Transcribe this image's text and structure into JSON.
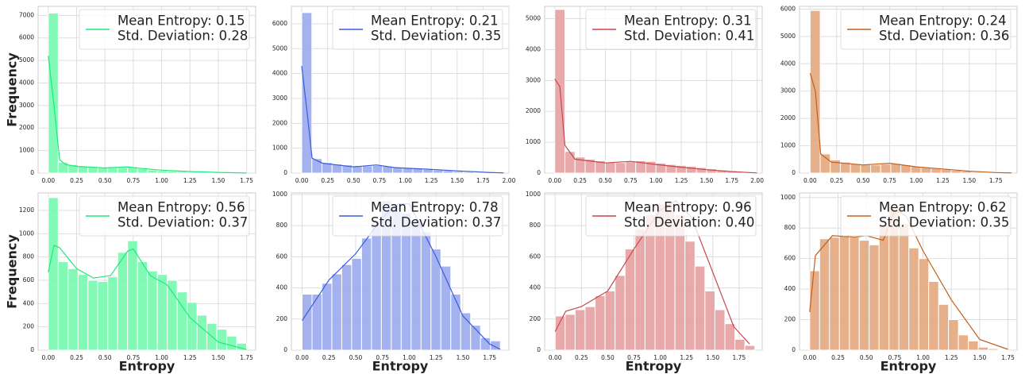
{
  "chart_data": [
    {
      "type": "histogram",
      "color": "#1de97a",
      "bar_color": "#74f9ae",
      "legend": [
        "Mean Entropy: 0.15",
        "Std. Deviation: 0.28"
      ],
      "legend_loc": "upper right",
      "grid": true,
      "ylabel": "Frequency",
      "bins": [
        0,
        0.0875,
        0.175,
        0.2625,
        0.35,
        0.4375,
        0.525,
        0.6125,
        0.7,
        0.7875,
        0.875,
        0.9625,
        1.05,
        1.1375,
        1.225,
        1.3125,
        1.4,
        1.4875,
        1.575,
        1.6625,
        1.75
      ],
      "counts": [
        7100,
        480,
        380,
        300,
        260,
        230,
        240,
        250,
        280,
        200,
        140,
        110,
        90,
        70,
        50,
        40,
        30,
        20,
        10,
        5
      ],
      "kde": {
        "x": [
          0,
          0.05,
          0.1,
          0.15,
          0.25,
          0.5,
          0.7,
          0.8,
          1.0,
          1.25,
          1.5,
          1.75
        ],
        "y": [
          5200,
          3000,
          600,
          380,
          300,
          230,
          280,
          220,
          130,
          70,
          30,
          5
        ]
      },
      "xlim": [
        -0.09,
        1.83
      ],
      "xticks": [
        {
          "value": 0,
          "label": "0.00"
        },
        {
          "value": 0.25,
          "label": "0.25"
        },
        {
          "value": 0.5,
          "label": "0.50"
        },
        {
          "value": 0.75,
          "label": "0.75"
        },
        {
          "value": 1,
          "label": "1.00"
        },
        {
          "value": 1.25,
          "label": "1.25"
        },
        {
          "value": 1.5,
          "label": "1.50"
        },
        {
          "value": 1.75,
          "label": "1.75"
        }
      ],
      "ylim": [
        0,
        7400
      ],
      "yticks": [
        0,
        1000,
        2000,
        3000,
        4000,
        5000,
        6000,
        7000
      ]
    },
    {
      "type": "histogram",
      "color": "#3b5bd9",
      "bar_color": "#9aabee",
      "legend": [
        "Mean Entropy: 0.21",
        "Std. Deviation: 0.35"
      ],
      "legend_loc": "upper right",
      "grid": true,
      "bins": [
        0,
        0.0975,
        0.195,
        0.2925,
        0.39,
        0.4875,
        0.585,
        0.6825,
        0.78,
        0.8775,
        0.975,
        1.0725,
        1.17,
        1.2675,
        1.365,
        1.4625,
        1.56,
        1.6575,
        1.755,
        1.8525,
        1.95
      ],
      "counts": [
        6450,
        580,
        420,
        360,
        330,
        300,
        290,
        310,
        280,
        240,
        200,
        180,
        150,
        120,
        100,
        70,
        50,
        30,
        15,
        5
      ],
      "kde": {
        "x": [
          0,
          0.05,
          0.1,
          0.2,
          0.5,
          0.72,
          0.9,
          1.2,
          1.5,
          1.8,
          1.95
        ],
        "y": [
          4300,
          2500,
          600,
          400,
          250,
          330,
          220,
          160,
          90,
          30,
          5
        ]
      },
      "xlim": [
        -0.1,
        2.0
      ],
      "xticks": [
        {
          "value": 0,
          "label": "0.00"
        },
        {
          "value": 0.25,
          "label": "0.25"
        },
        {
          "value": 0.5,
          "label": "0.50"
        },
        {
          "value": 0.75,
          "label": "0.75"
        },
        {
          "value": 1,
          "label": "1.00"
        },
        {
          "value": 1.25,
          "label": "1.25"
        },
        {
          "value": 1.5,
          "label": "1.50"
        },
        {
          "value": 1.75,
          "label": "1.75"
        },
        {
          "value": 2,
          "label": "2.00"
        }
      ],
      "ylim": [
        0,
        6700
      ],
      "yticks": [
        0,
        1000,
        2000,
        3000,
        4000,
        5000,
        6000
      ]
    },
    {
      "type": "histogram",
      "color": "#c9474a",
      "bar_color": "#e4a0a0",
      "legend": [
        "Mean Entropy: 0.31",
        "Std. Deviation: 0.41"
      ],
      "legend_loc": "upper right",
      "grid": true,
      "bins": [
        0,
        0.1,
        0.2,
        0.3,
        0.4,
        0.5,
        0.6,
        0.7,
        0.8,
        0.9,
        1.0,
        1.1,
        1.2,
        1.3,
        1.4,
        1.5,
        1.6,
        1.7,
        1.8,
        1.9,
        2.0
      ],
      "counts": [
        5300,
        700,
        520,
        450,
        400,
        360,
        340,
        370,
        400,
        380,
        320,
        280,
        250,
        220,
        180,
        140,
        100,
        70,
        40,
        15
      ],
      "kde": {
        "x": [
          0,
          0.05,
          0.1,
          0.2,
          0.5,
          0.75,
          1.0,
          1.25,
          1.5,
          1.75,
          2.0
        ],
        "y": [
          3050,
          2800,
          900,
          450,
          330,
          380,
          280,
          190,
          110,
          50,
          5
        ]
      },
      "xlim": [
        -0.1,
        2.05
      ],
      "xticks": [
        {
          "value": 0,
          "label": "0.00"
        },
        {
          "value": 0.25,
          "label": "0.25"
        },
        {
          "value": 0.5,
          "label": "0.50"
        },
        {
          "value": 0.75,
          "label": "0.75"
        },
        {
          "value": 1,
          "label": "1.00"
        },
        {
          "value": 1.25,
          "label": "1.25"
        },
        {
          "value": 1.5,
          "label": "1.50"
        },
        {
          "value": 1.75,
          "label": "1.75"
        },
        {
          "value": 2,
          "label": "2.00"
        }
      ],
      "ylim": [
        0,
        5400
      ],
      "yticks": [
        0,
        1000,
        2000,
        3000,
        4000,
        5000
      ]
    },
    {
      "type": "histogram",
      "color": "#c0601e",
      "bar_color": "#e3a77e",
      "legend": [
        "Mean Entropy: 0.24",
        "Std. Deviation: 0.36"
      ],
      "legend_loc": "upper right",
      "grid": true,
      "bins": [
        0,
        0.095,
        0.19,
        0.285,
        0.38,
        0.475,
        0.57,
        0.665,
        0.76,
        0.855,
        0.95,
        1.045,
        1.14,
        1.235,
        1.33,
        1.425,
        1.52,
        1.615,
        1.71,
        1.805,
        1.9
      ],
      "counts": [
        5950,
        700,
        480,
        400,
        340,
        310,
        300,
        330,
        350,
        300,
        240,
        200,
        170,
        140,
        100,
        70,
        40,
        20,
        10,
        5
      ],
      "kde": {
        "x": [
          0,
          0.05,
          0.1,
          0.2,
          0.5,
          0.75,
          1.0,
          1.25,
          1.5,
          1.75,
          1.9
        ],
        "y": [
          3650,
          3000,
          700,
          400,
          300,
          360,
          230,
          150,
          70,
          20,
          5
        ]
      },
      "xlim": [
        -0.1,
        1.95
      ],
      "xticks": [
        {
          "value": 0,
          "label": "0.00"
        },
        {
          "value": 0.25,
          "label": "0.25"
        },
        {
          "value": 0.5,
          "label": "0.50"
        },
        {
          "value": 0.75,
          "label": "0.75"
        },
        {
          "value": 1,
          "label": "1.00"
        },
        {
          "value": 1.25,
          "label": "1.25"
        },
        {
          "value": 1.5,
          "label": "1.50"
        },
        {
          "value": 1.75,
          "label": "1.75"
        }
      ],
      "ylim": [
        0,
        6100
      ],
      "yticks": [
        0,
        1000,
        2000,
        3000,
        4000,
        5000,
        6000
      ]
    },
    {
      "type": "histogram",
      "color": "#1de97a",
      "bar_color": "#74f9ae",
      "legend": [
        "Mean Entropy: 0.56",
        "Std. Deviation: 0.37"
      ],
      "legend_loc": "upper right",
      "grid": true,
      "ylabel": "Frequency",
      "xlabel": "Entropy",
      "bins": [
        0,
        0.0875,
        0.175,
        0.2625,
        0.35,
        0.4375,
        0.525,
        0.6125,
        0.7,
        0.7875,
        0.875,
        0.9625,
        1.05,
        1.1375,
        1.225,
        1.3125,
        1.4,
        1.4875,
        1.575,
        1.6625,
        1.75
      ],
      "counts": [
        1310,
        760,
        700,
        650,
        600,
        590,
        630,
        840,
        940,
        760,
        680,
        650,
        600,
        500,
        410,
        300,
        230,
        180,
        120,
        60
      ],
      "kde": {
        "x": [
          0,
          0.05,
          0.1,
          0.25,
          0.4,
          0.55,
          0.7,
          0.75,
          0.9,
          1.05,
          1.25,
          1.5,
          1.75
        ],
        "y": [
          670,
          900,
          880,
          700,
          620,
          640,
          850,
          870,
          640,
          560,
          280,
          70,
          5
        ]
      },
      "xlim": [
        -0.09,
        1.83
      ],
      "xticks": [
        {
          "value": 0,
          "label": "0.00"
        },
        {
          "value": 0.25,
          "label": "0.25"
        },
        {
          "value": 0.5,
          "label": "0.50"
        },
        {
          "value": 0.75,
          "label": "0.75"
        },
        {
          "value": 1,
          "label": "1.00"
        },
        {
          "value": 1.25,
          "label": "1.25"
        },
        {
          "value": 1.5,
          "label": "1.50"
        },
        {
          "value": 1.75,
          "label": "1.75"
        }
      ],
      "ylim": [
        0,
        1350
      ],
      "yticks": [
        0,
        200,
        400,
        600,
        800,
        1000,
        1200
      ]
    },
    {
      "type": "histogram",
      "color": "#3b5bd9",
      "bar_color": "#9aabee",
      "legend": [
        "Mean Entropy: 0.78",
        "Std. Deviation: 0.37"
      ],
      "legend_loc": "upper right",
      "grid": true,
      "xlabel": "Entropy",
      "bins": [
        0,
        0.0925,
        0.185,
        0.2775,
        0.37,
        0.4625,
        0.555,
        0.6475,
        0.74,
        0.8325,
        0.925,
        1.0175,
        1.11,
        1.2025,
        1.295,
        1.3875,
        1.48,
        1.5725,
        1.665,
        1.7575,
        1.85
      ],
      "counts": [
        360,
        360,
        430,
        490,
        550,
        590,
        720,
        830,
        960,
        940,
        880,
        840,
        760,
        650,
        540,
        360,
        240,
        160,
        80,
        60
      ],
      "kde": {
        "x": [
          0,
          0.25,
          0.5,
          0.75,
          0.9,
          1.0,
          1.25,
          1.5,
          1.75,
          1.85
        ],
        "y": [
          190,
          450,
          620,
          850,
          940,
          940,
          600,
          220,
          40,
          5
        ]
      },
      "xlim": [
        -0.1,
        1.93
      ],
      "xticks": [
        {
          "value": 0,
          "label": "0.00"
        },
        {
          "value": 0.25,
          "label": "0.25"
        },
        {
          "value": 0.5,
          "label": "0.50"
        },
        {
          "value": 0.75,
          "label": "0.75"
        },
        {
          "value": 1,
          "label": "1.00"
        },
        {
          "value": 1.25,
          "label": "1.25"
        },
        {
          "value": 1.5,
          "label": "1.50"
        },
        {
          "value": 1.75,
          "label": "1.75"
        }
      ],
      "ylim": [
        0,
        1010
      ],
      "yticks": [
        0,
        200,
        400,
        600,
        800,
        1000
      ]
    },
    {
      "type": "histogram",
      "color": "#c9474a",
      "bar_color": "#e4a0a0",
      "legend": [
        "Mean Entropy: 0.96",
        "Std. Deviation: 0.40"
      ],
      "legend_loc": "upper right",
      "grid": true,
      "xlabel": "Entropy",
      "bins": [
        0,
        0.095,
        0.19,
        0.285,
        0.38,
        0.475,
        0.57,
        0.665,
        0.76,
        0.855,
        0.95,
        1.045,
        1.14,
        1.235,
        1.33,
        1.425,
        1.52,
        1.615,
        1.71,
        1.805,
        1.9
      ],
      "counts": [
        220,
        230,
        260,
        280,
        350,
        380,
        480,
        650,
        780,
        870,
        940,
        940,
        870,
        700,
        540,
        380,
        260,
        170,
        70,
        30
      ],
      "kde": {
        "x": [
          0,
          0.1,
          0.25,
          0.5,
          0.75,
          1.0,
          1.15,
          1.3,
          1.5,
          1.7,
          1.85
        ],
        "y": [
          120,
          250,
          280,
          380,
          650,
          900,
          960,
          850,
          500,
          150,
          40
        ]
      },
      "xlim": [
        -0.1,
        1.97
      ],
      "xticks": [
        {
          "value": 0,
          "label": "0.00"
        },
        {
          "value": 0.25,
          "label": "0.25"
        },
        {
          "value": 0.5,
          "label": "0.50"
        },
        {
          "value": 0.75,
          "label": "0.75"
        },
        {
          "value": 1,
          "label": "1.00"
        },
        {
          "value": 1.25,
          "label": "1.25"
        },
        {
          "value": 1.5,
          "label": "1.50"
        },
        {
          "value": 1.75,
          "label": "1.75"
        }
      ],
      "ylim": [
        0,
        1010
      ],
      "yticks": [
        0,
        200,
        400,
        600,
        800,
        1000
      ]
    },
    {
      "type": "histogram",
      "color": "#c0601e",
      "bar_color": "#e3a77e",
      "legend": [
        "Mean Entropy: 0.62",
        "Std. Deviation: 0.35"
      ],
      "legend_loc": "upper right",
      "grid": true,
      "xlabel": "Entropy",
      "bins": [
        0,
        0.0875,
        0.175,
        0.2625,
        0.35,
        0.4375,
        0.525,
        0.6125,
        0.7,
        0.7875,
        0.875,
        0.9625,
        1.05,
        1.1375,
        1.225,
        1.3125,
        1.4,
        1.4875,
        1.575,
        1.6625,
        1.75
      ],
      "counts": [
        520,
        730,
        740,
        750,
        740,
        720,
        690,
        820,
        940,
        830,
        670,
        600,
        450,
        300,
        200,
        100,
        60,
        20,
        10,
        5
      ],
      "kde": {
        "x": [
          0,
          0.05,
          0.2,
          0.4,
          0.5,
          0.65,
          0.75,
          0.85,
          1.0,
          1.25,
          1.5,
          1.75
        ],
        "y": [
          250,
          620,
          750,
          740,
          750,
          720,
          920,
          880,
          650,
          330,
          70,
          5
        ]
      },
      "xlim": [
        -0.09,
        1.83
      ],
      "xticks": [
        {
          "value": 0,
          "label": "0.00"
        },
        {
          "value": 0.25,
          "label": "0.25"
        },
        {
          "value": 0.5,
          "label": "0.50"
        },
        {
          "value": 0.75,
          "label": "0.75"
        },
        {
          "value": 1,
          "label": "1.00"
        },
        {
          "value": 1.25,
          "label": "1.25"
        },
        {
          "value": 1.5,
          "label": "1.50"
        },
        {
          "value": 1.75,
          "label": "1.75"
        }
      ],
      "ylim": [
        0,
        1030
      ],
      "yticks": [
        0,
        200,
        400,
        600,
        800,
        1000
      ]
    }
  ]
}
